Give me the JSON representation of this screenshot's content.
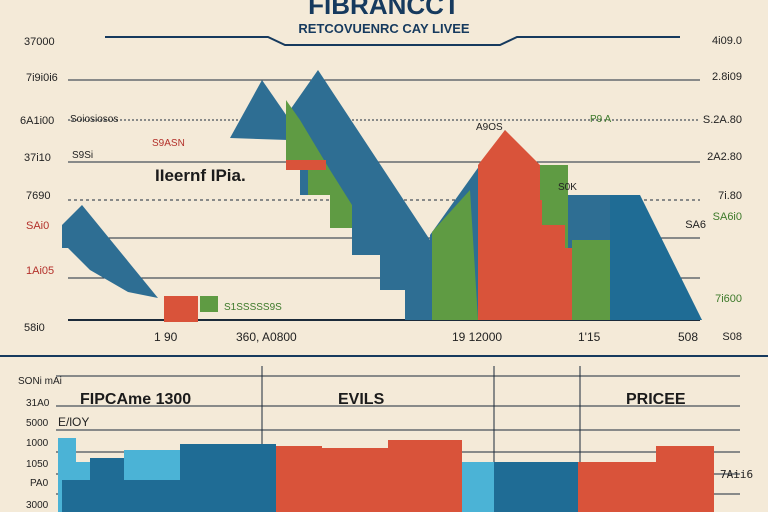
{
  "header": {
    "title": "FIBRANCCT",
    "subtitle": "RETCOVUENRC CAY LIVEE"
  },
  "top_chart": {
    "left_ticks": [
      "37000",
      "7i9i0i6",
      "6A1i00",
      "37i10",
      "7690",
      "SAi0",
      "1Ai05",
      "58i0"
    ],
    "right_ticks": [
      "4i09.0",
      "2.8i09",
      "S.2A.80",
      "2A2.80",
      "7i.80",
      "SA6i0",
      "SA6",
      "7i600",
      "S08"
    ],
    "annotations": {
      "left_long": "Soiosiosos",
      "left_mid": "S9ASN",
      "left_box": "S9Si",
      "center_label": "IIeernf IPia.",
      "green_box": "S1SSSSS9S",
      "peak_right": "A9OS",
      "green_tag": "P9 A",
      "right_small": "S0K"
    },
    "bottom_labels": [
      "1 90",
      "360, A0800",
      "19 12000",
      "1'15",
      "508"
    ]
  },
  "bottom_panel": {
    "headers": [
      "FIPCAme 1300",
      "EVILS",
      "PRICEE"
    ],
    "left_ticks": [
      "SONi mAi",
      "31A0",
      "5000",
      "1000",
      "1050",
      "PA0",
      "3000"
    ],
    "left_sub": "E/lOY",
    "right_tick": "7Aii6"
  },
  "chart_data": [
    {
      "type": "area",
      "title": "FIBRANCCT",
      "subtitle": "RETCOVUENRC CAY LIVEE",
      "series": [
        {
          "name": "",
          "color": "#2e6e93"
        },
        {
          "name": "",
          "color": "#5f9b43"
        },
        {
          "name": "",
          "color": "#d9533a"
        }
      ],
      "grid": true
    },
    {
      "type": "bar",
      "categories": [
        "FIPCAme 1300",
        "EVILS",
        "PRICEE"
      ],
      "colors": {
        "blue": "#1f6c95",
        "light_blue": "#4bb3d6",
        "red": "#d9533a"
      }
    }
  ],
  "colors": {
    "background": "#f4ead8",
    "navy": "#163a5e",
    "blue": "#2e6e93",
    "light_blue": "#4bb3d6",
    "green": "#5f9b43",
    "red": "#d9533a",
    "text": "#222222"
  }
}
